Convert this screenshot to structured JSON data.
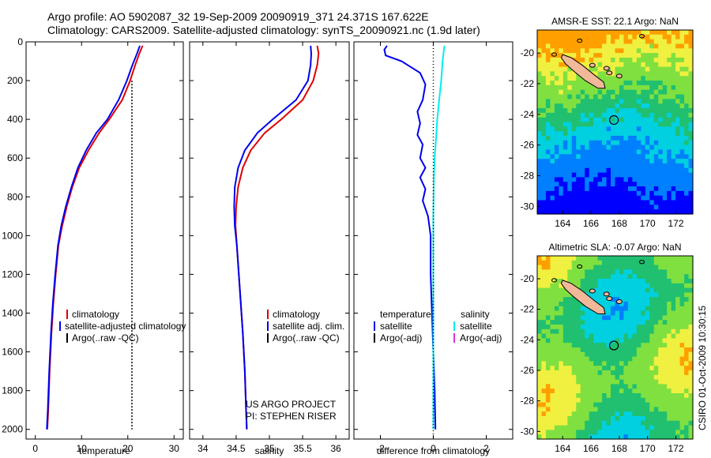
{
  "header": {
    "line1": "Argo profile: AO 5902087_32 19-Sep-2009 20090919_371 24.371S 167.622E",
    "line2": "Climatology: CARS2009. Satellite-adjusted climatology: synTS_20090921.nc (1.9d later)"
  },
  "side_label": "CSIRO 01-Oct-2009 10:30:15",
  "colors": {
    "climatology": "#e00000",
    "satellite": "#0000ee",
    "argo": "#000000",
    "salinity_sat": "#00eeee",
    "salinity_argo": "#e030e0",
    "land": "#f2b89a"
  },
  "chart_data": [
    {
      "type": "line",
      "xlabel": "temperature",
      "xlim": [
        -2,
        32
      ],
      "xticks": [
        0,
        10,
        20,
        30
      ],
      "ylim": [
        0,
        2050
      ],
      "yticks": [
        0,
        200,
        400,
        600,
        800,
        1000,
        1200,
        1400,
        1600,
        1800,
        2000
      ],
      "y_reversed": true,
      "legend": {
        "position": "lower-middle",
        "entries": [
          "climatology",
          "satellite-adjusted climatology",
          "Argo(..raw -QC)"
        ]
      },
      "series": [
        {
          "name": "climatology",
          "color": "#e00000",
          "x": [
            23.2,
            22.5,
            21.6,
            20.5,
            18.8,
            16.0,
            13.8,
            11.5,
            9.5,
            8.0,
            6.8,
            5.8,
            5.0,
            4.4,
            3.9,
            3.5,
            3.1,
            2.8,
            2.6
          ],
          "y": [
            20,
            60,
            120,
            200,
            300,
            400,
            470,
            560,
            650,
            750,
            850,
            950,
            1050,
            1200,
            1350,
            1500,
            1700,
            1900,
            2000
          ]
        },
        {
          "name": "satellite-adjusted climatology",
          "color": "#0000ee",
          "x": [
            22.6,
            22.0,
            21.0,
            19.8,
            18.0,
            15.6,
            13.2,
            11.0,
            9.2,
            7.8,
            6.6,
            5.6,
            4.9,
            4.3,
            3.8,
            3.4,
            3.0,
            2.7,
            2.5
          ],
          "y": [
            20,
            60,
            120,
            200,
            300,
            400,
            470,
            560,
            650,
            750,
            850,
            950,
            1050,
            1200,
            1350,
            1500,
            1700,
            1900,
            2000
          ]
        },
        {
          "name": "Argo(..raw -QC)",
          "color": "#000000",
          "dashed": true,
          "x": [
            20.9,
            20.9,
            20.9,
            20.9
          ],
          "y": [
            200,
            800,
            1400,
            2000
          ]
        }
      ]
    },
    {
      "type": "line",
      "xlabel": "salinity",
      "xlim": [
        33.8,
        36.2
      ],
      "xticks": [
        34,
        34.5,
        35,
        35.5,
        36
      ],
      "ylim": [
        0,
        2050
      ],
      "y_reversed": true,
      "legend": {
        "position": "lower-middle",
        "entries": [
          "climatology",
          "satellite adj. clim.",
          "Argo(..raw -QC)"
        ]
      },
      "annotation": [
        "US ARGO PROJECT",
        "PI: STEPHEN RISER"
      ],
      "series": [
        {
          "name": "climatology",
          "color": "#e00000",
          "x": [
            35.72,
            35.74,
            35.72,
            35.66,
            35.5,
            35.18,
            34.93,
            34.72,
            34.6,
            34.53,
            34.5,
            34.49,
            34.51,
            34.54,
            34.57,
            34.6,
            34.63,
            34.65,
            34.66
          ],
          "y": [
            20,
            60,
            120,
            200,
            300,
            400,
            470,
            560,
            650,
            750,
            850,
            950,
            1050,
            1200,
            1350,
            1500,
            1700,
            1900,
            2000
          ]
        },
        {
          "name": "satellite adj. clim.",
          "color": "#0000ee",
          "x": [
            35.62,
            35.63,
            35.62,
            35.58,
            35.4,
            35.05,
            34.82,
            34.63,
            34.53,
            34.48,
            34.47,
            34.48,
            34.51,
            34.54,
            34.57,
            34.6,
            34.63,
            34.65,
            34.66
          ],
          "y": [
            20,
            60,
            120,
            200,
            300,
            400,
            470,
            560,
            650,
            750,
            850,
            950,
            1050,
            1200,
            1350,
            1500,
            1700,
            1900,
            2000
          ]
        }
      ]
    },
    {
      "type": "line",
      "xlabel": "difference from climatology",
      "xlim": [
        -3,
        3
      ],
      "xticks": [
        -2,
        0,
        2
      ],
      "ylim": [
        0,
        2050
      ],
      "y_reversed": true,
      "legend": {
        "position": "lower-middle",
        "headers": [
          "temperature",
          "salinity"
        ],
        "entries": [
          "satellite",
          "Argo(-adj)",
          "satellite",
          "Argo(-adj)"
        ]
      },
      "series": [
        {
          "name": "temperature satellite",
          "color": "#0000ee",
          "x": [
            -1.75,
            -1.85,
            -1.8,
            -1.2,
            -0.5,
            -0.3,
            -0.4,
            -0.6,
            -0.5,
            -0.6,
            -0.4,
            -0.5,
            -0.3,
            -0.5,
            -0.3,
            -0.4,
            -0.2,
            -0.1,
            -0.1,
            -0.05,
            0.0,
            0.05,
            0.08
          ],
          "y": [
            20,
            40,
            70,
            100,
            160,
            220,
            300,
            360,
            420,
            480,
            530,
            600,
            650,
            700,
            760,
            820,
            900,
            1000,
            1200,
            1400,
            1600,
            1800,
            2000
          ]
        },
        {
          "name": "salinity satellite",
          "color": "#00eeee",
          "x": [
            0.42,
            0.35,
            0.3,
            0.22,
            0.15,
            0.1,
            0.05,
            0.02,
            0.0,
            0.0,
            0.0,
            0.0
          ],
          "y": [
            20,
            100,
            200,
            300,
            400,
            500,
            600,
            700,
            900,
            1200,
            1600,
            2000
          ]
        },
        {
          "name": "zero",
          "color": "#000000",
          "dotted": true,
          "x": [
            0,
            0
          ],
          "y": [
            0,
            2050
          ]
        }
      ]
    },
    {
      "type": "heatmap",
      "title": "AMSR-E SST: 22.1 Argo: NaN",
      "xticks": [
        164,
        166,
        168,
        170,
        172
      ],
      "yticks": [
        -20,
        -22,
        -24,
        -26,
        -28,
        -30
      ],
      "xlim": [
        162.2,
        173.2
      ],
      "ylim": [
        -30.5,
        -18.5
      ],
      "argo_position": [
        167.622,
        -24.371
      ]
    },
    {
      "type": "heatmap",
      "title": "Altimetric SLA: -0.07 Argo: NaN",
      "xticks": [
        164,
        166,
        168,
        170,
        172
      ],
      "yticks": [
        -20,
        -22,
        -24,
        -26,
        -28,
        -30
      ],
      "xlim": [
        162.2,
        173.2
      ],
      "ylim": [
        -30.5,
        -18.5
      ],
      "argo_position": [
        167.622,
        -24.371
      ]
    }
  ]
}
